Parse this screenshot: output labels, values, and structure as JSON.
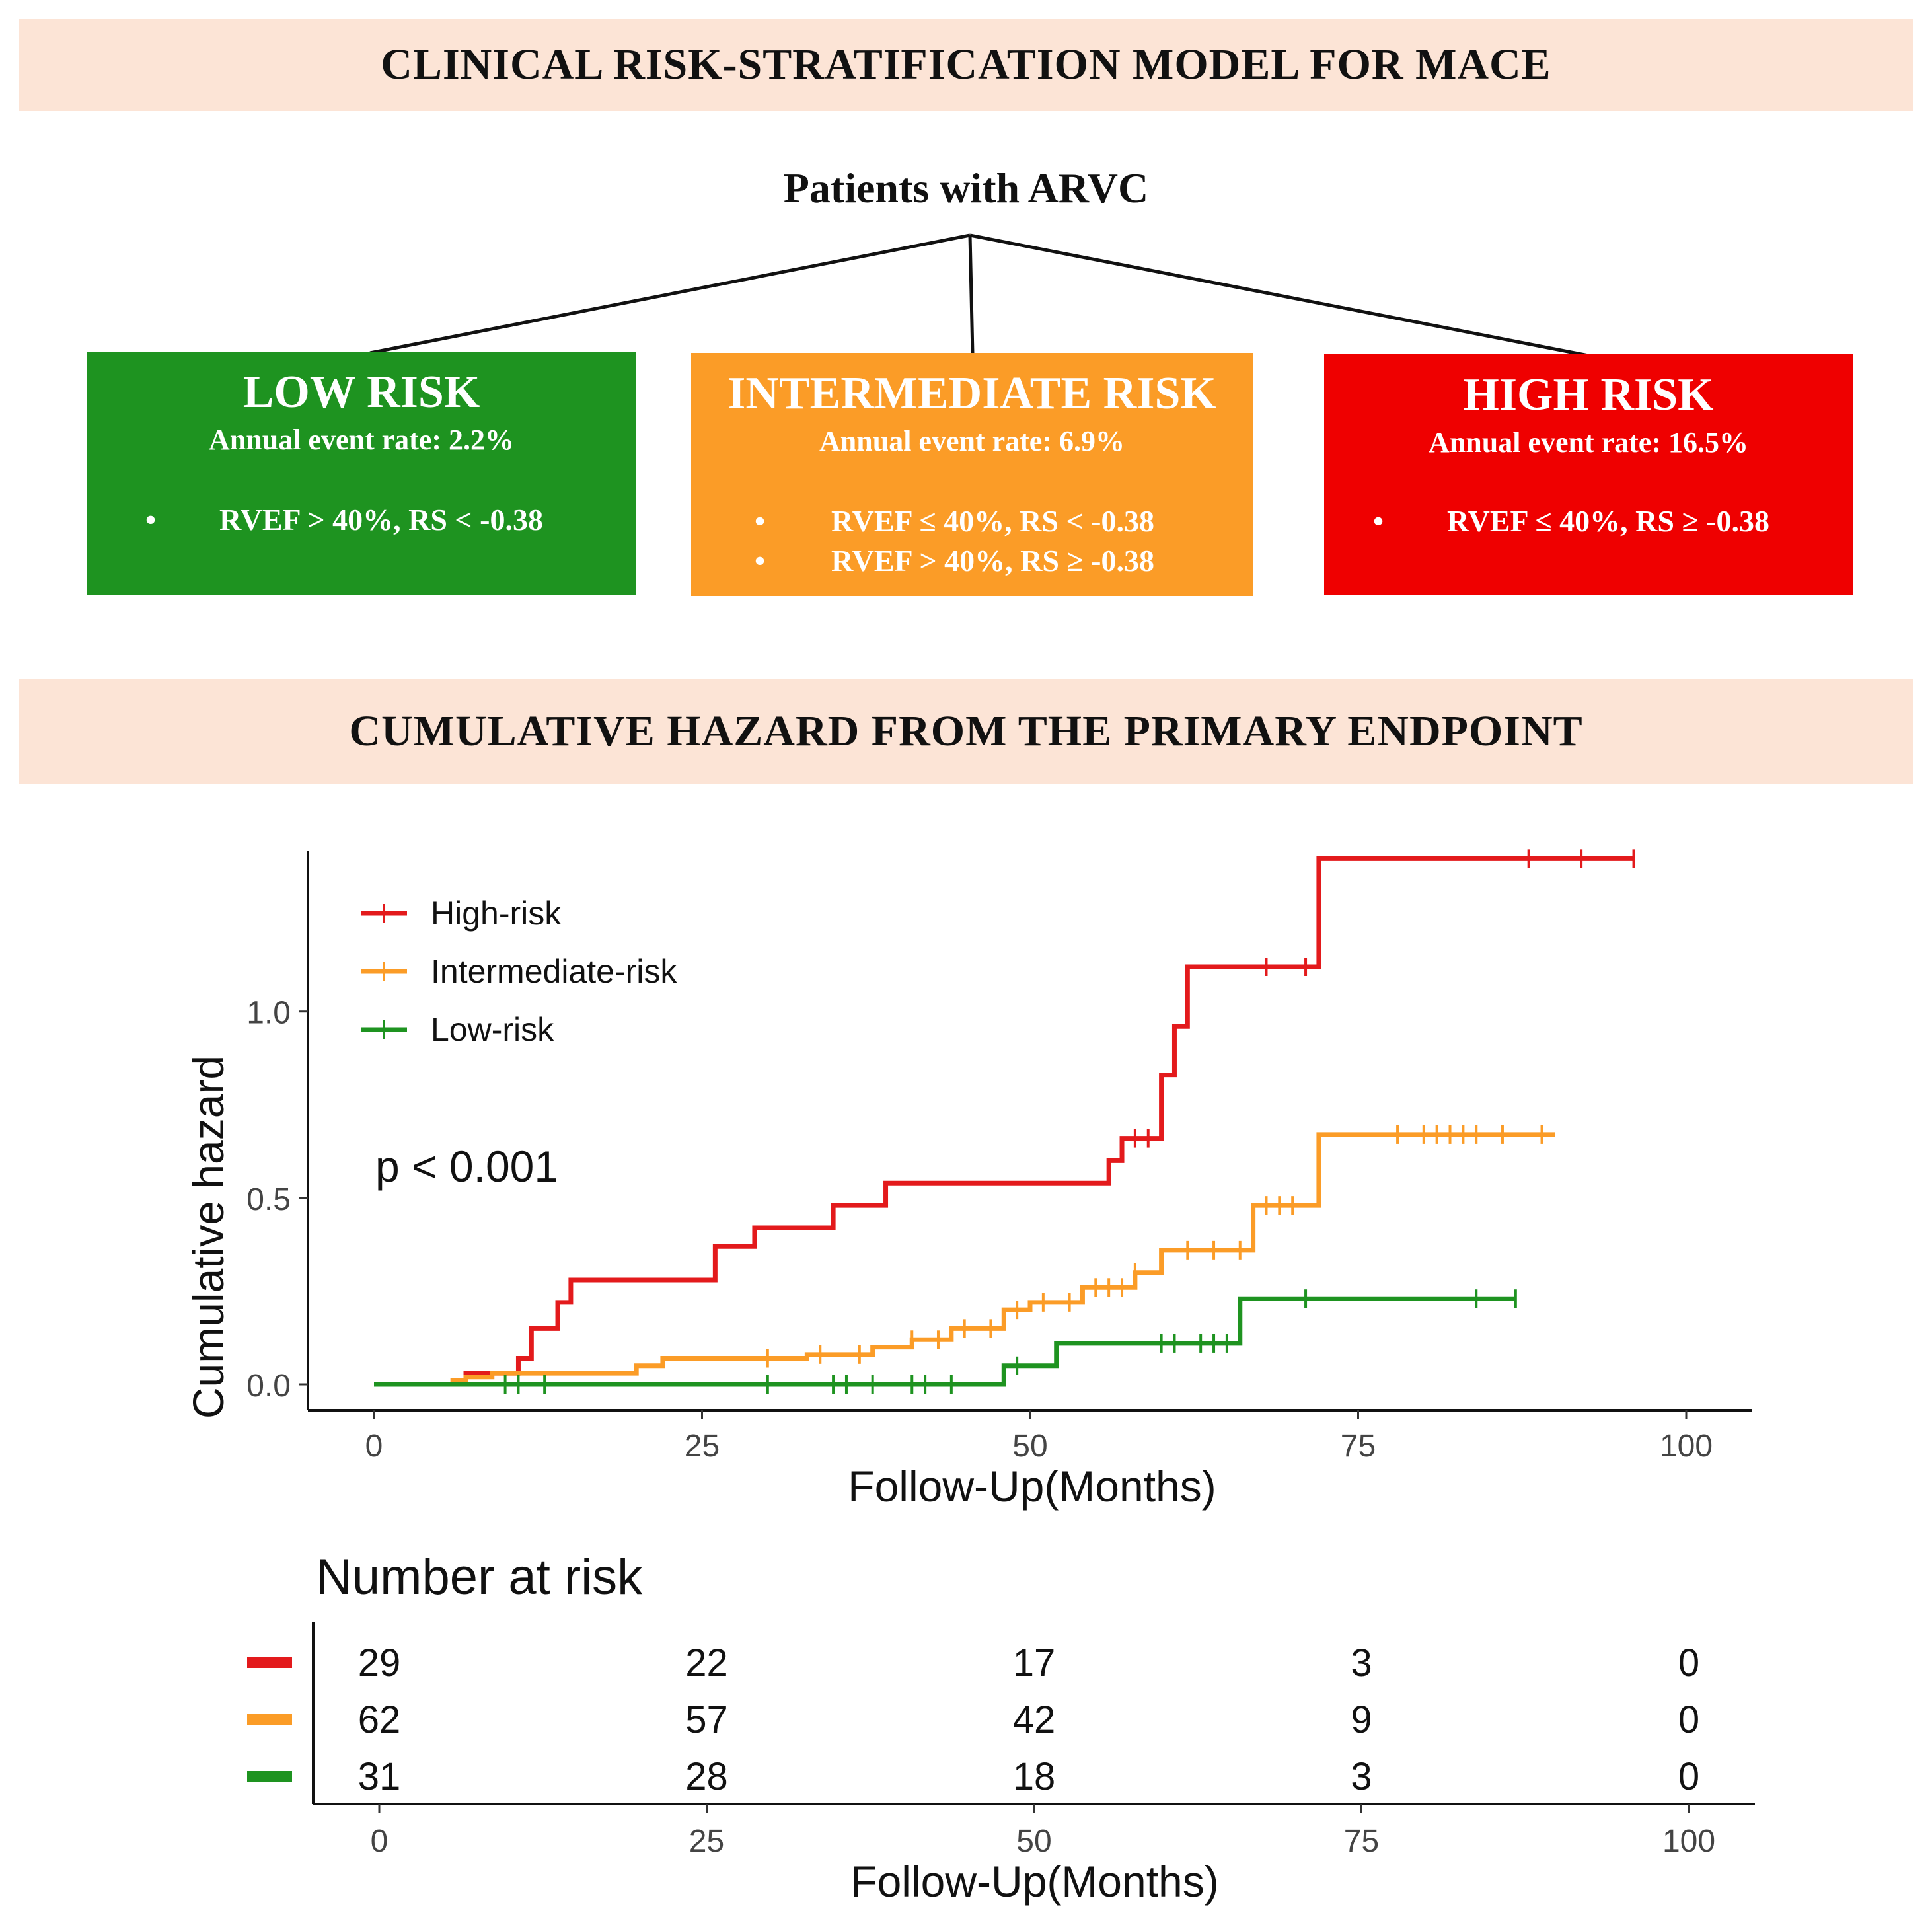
{
  "banners": {
    "top": "CLINICAL RISK-STRATIFICATION MODEL FOR MACE",
    "bottom": "CUMULATIVE HAZARD FROM THE PRIMARY ENDPOINT"
  },
  "tree": {
    "root": "Patients with ARVC",
    "boxes": [
      {
        "title": "LOW RISK",
        "rate": "Annual event rate: 2.2%",
        "bullet": "•",
        "criteria": [
          "RVEF > 40%, RS < -0.38"
        ],
        "color": "#1e9320"
      },
      {
        "title": "INTERMEDIATE RISK",
        "rate": "Annual event rate: 6.9%",
        "bullet": "•",
        "criteria": [
          "RVEF ≤ 40%, RS < -0.38",
          "RVEF > 40%, RS ≥ -0.38"
        ],
        "color": "#fb9c27"
      },
      {
        "title": "HIGH RISK",
        "rate": "Annual event rate: 16.5%",
        "bullet": "•",
        "criteria": [
          "RVEF ≤ 40%, RS ≥ -0.38"
        ],
        "color": "#ef0000"
      }
    ]
  },
  "chart_data": {
    "type": "line",
    "subtype": "cumulative-hazard step plot",
    "xlabel": "Follow-Up(Months)",
    "ylabel": "Cumulative hazard",
    "xlim": [
      0,
      100
    ],
    "ylim": [
      0,
      1.4
    ],
    "xticks": [
      "0",
      "25",
      "50",
      "75",
      "100"
    ],
    "yticks": [
      "0.0",
      "0.5",
      "1.0"
    ],
    "annotation": "p < 0.001",
    "legend_position": "top-left",
    "series": [
      {
        "name": "High-risk",
        "color": "#e31a1c",
        "steps": [
          [
            0,
            0
          ],
          [
            7,
            0.03
          ],
          [
            11,
            0.07
          ],
          [
            12,
            0.15
          ],
          [
            14,
            0.22
          ],
          [
            15,
            0.28
          ],
          [
            26,
            0.37
          ],
          [
            29,
            0.42
          ],
          [
            35,
            0.48
          ],
          [
            39,
            0.54
          ],
          [
            56,
            0.6
          ],
          [
            57,
            0.66
          ],
          [
            60,
            0.83
          ],
          [
            61,
            0.96
          ],
          [
            62,
            1.12
          ],
          [
            72,
            1.41
          ]
        ],
        "end": 96,
        "censor": [
          58,
          59,
          68,
          71,
          88,
          92,
          96
        ]
      },
      {
        "name": "Intermediate-risk",
        "color": "#fb9c27",
        "steps": [
          [
            0,
            0
          ],
          [
            6,
            0.01
          ],
          [
            7,
            0.02
          ],
          [
            9,
            0.03
          ],
          [
            20,
            0.05
          ],
          [
            22,
            0.07
          ],
          [
            33,
            0.08
          ],
          [
            38,
            0.1
          ],
          [
            41,
            0.12
          ],
          [
            44,
            0.15
          ],
          [
            48,
            0.2
          ],
          [
            50,
            0.22
          ],
          [
            54,
            0.26
          ],
          [
            58,
            0.3
          ],
          [
            60,
            0.36
          ],
          [
            67,
            0.48
          ],
          [
            72,
            0.67
          ]
        ],
        "end": 90,
        "censor": [
          30,
          34,
          37,
          41,
          43,
          45,
          47,
          49,
          51,
          53,
          55,
          56,
          57,
          58,
          62,
          64,
          66,
          68,
          69,
          70,
          78,
          80,
          81,
          82,
          83,
          84,
          86,
          89
        ]
      },
      {
        "name": "Low-risk",
        "color": "#1e9320",
        "steps": [
          [
            0,
            0
          ],
          [
            48,
            0.05
          ],
          [
            52,
            0.11
          ],
          [
            66,
            0.23
          ]
        ],
        "end": 87,
        "censor": [
          10,
          11,
          13,
          30,
          35,
          36,
          38,
          41,
          42,
          44,
          49,
          60,
          61,
          63,
          64,
          65,
          71,
          84,
          87
        ]
      }
    ]
  },
  "risk_table": {
    "title": "Number at risk",
    "xlabel": "Follow-Up(Months)",
    "xticks": [
      "0",
      "25",
      "50",
      "75",
      "100"
    ],
    "rows": [
      {
        "color": "#e31a1c",
        "values": [
          "29",
          "22",
          "17",
          "3",
          "0"
        ]
      },
      {
        "color": "#fb9c27",
        "values": [
          "62",
          "57",
          "42",
          "9",
          "0"
        ]
      },
      {
        "color": "#1e9320",
        "values": [
          "31",
          "28",
          "18",
          "3",
          "0"
        ]
      }
    ]
  }
}
